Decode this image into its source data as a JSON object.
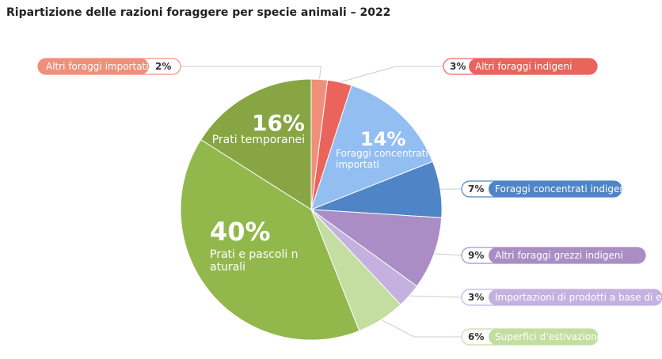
{
  "title": "Ripartizione delle razioni foraggere per specie animali – 2022",
  "chart_data": {
    "type": "pie",
    "title": "Ripartizione delle razioni foraggere per specie animali – 2022",
    "slices": [
      {
        "label": "Altri foraggi importati",
        "value": 2,
        "display": "2%",
        "color": "#F0907A"
      },
      {
        "label": "Altri foraggi indigeni",
        "value": 3,
        "display": "3%",
        "color": "#EA645C"
      },
      {
        "label": "Foraggi concentrati importati",
        "value": 14,
        "display": "14%",
        "color": "#92BEF2"
      },
      {
        "label": "Foraggi concentrati indigeni",
        "value": 7,
        "display": "7%",
        "color": "#4F84C6"
      },
      {
        "label": "Altri foraggi grezzi indigeni",
        "value": 9,
        "display": "9%",
        "color": "#A98DC4"
      },
      {
        "label": "Importazioni di prodotti a base di erba",
        "value": 3,
        "display": "3%",
        "color": "#C4B1E0"
      },
      {
        "label": "Superfici d’estivazione",
        "value": 6,
        "display": "6%",
        "color": "#C3DEA0"
      },
      {
        "label": "Prati e pascoli naturali",
        "value": 40,
        "display": "40%",
        "color": "#92B84C"
      },
      {
        "label": "Prati temporanei",
        "value": 16,
        "display": "16%",
        "color": "#87A543"
      }
    ]
  }
}
